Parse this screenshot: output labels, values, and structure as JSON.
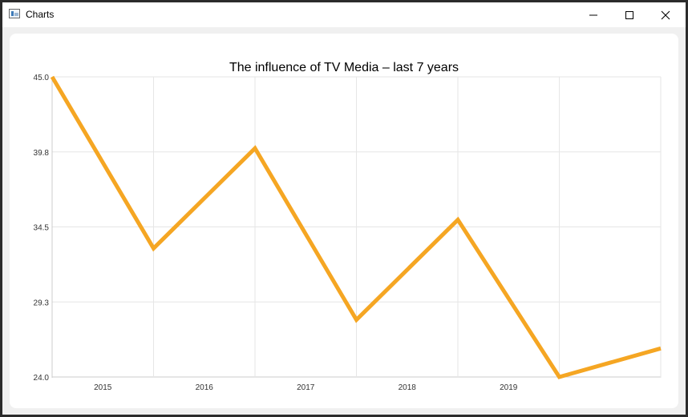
{
  "window": {
    "title": "Charts",
    "icon": "chart-app-icon",
    "controls": [
      "minimize-icon",
      "maximize-icon",
      "close-icon"
    ]
  },
  "chart_data": {
    "type": "line",
    "title": "The influence of TV Media – last 7 years",
    "xlabel": "",
    "ylabel": "",
    "x": [
      0,
      1,
      2,
      3,
      4,
      5,
      6
    ],
    "x_tick_labels": [
      "2015",
      "2016",
      "2017",
      "2018",
      "2019"
    ],
    "y_tick_labels": [
      "45.0",
      "39.8",
      "34.5",
      "29.3",
      "24.0"
    ],
    "ylim": [
      24.0,
      45.0
    ],
    "grid": true,
    "legend": "none",
    "series": [
      {
        "values": [
          45.0,
          33.0,
          40.0,
          28.0,
          35.0,
          24.0,
          26.0
        ],
        "color": "#f5a623"
      }
    ],
    "colors": {
      "line": "#f5a623",
      "grid": "#e6e6e6",
      "axis": "#cccccc"
    }
  }
}
